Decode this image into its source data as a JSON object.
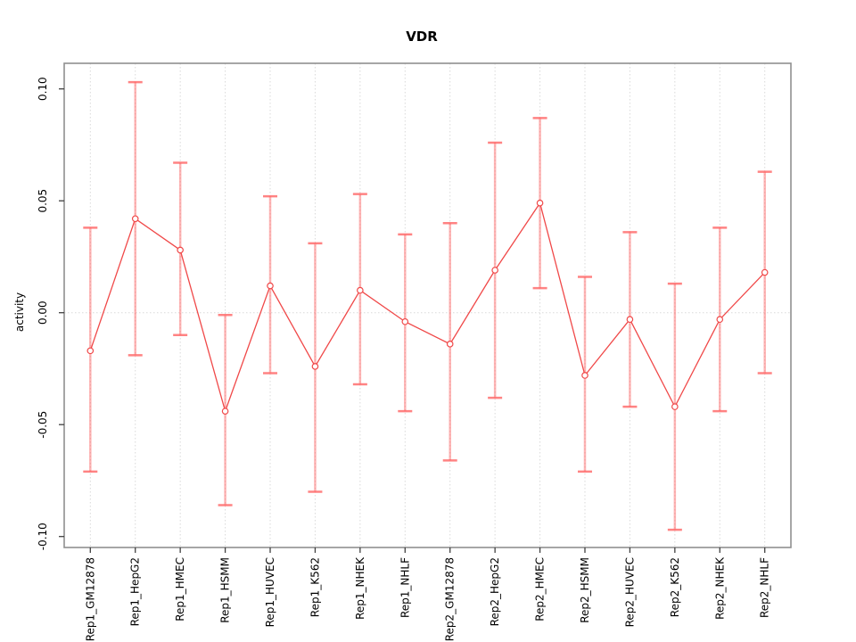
{
  "chart_data": {
    "type": "line",
    "title": "VDR",
    "xlabel": "",
    "ylabel": "activity",
    "legend": "none",
    "grid": {
      "vertical_dotted_at_categories": true,
      "horizontal_dotted_at_zero": true
    },
    "marker": "open-circle",
    "error_bars": true,
    "ylim": [
      -0.105,
      0.111
    ],
    "yticks": {
      "values": [
        -0.1,
        -0.05,
        0.0,
        0.05,
        0.1
      ],
      "labels": [
        "-0.10",
        "-0.05",
        "0.00",
        "0.05",
        "0.10"
      ]
    },
    "categories": [
      "Rep1_GM12878",
      "Rep1_HepG2",
      "Rep1_HMEC",
      "Rep1_HSMM",
      "Rep1_HUVEC",
      "Rep1_K562",
      "Rep1_NHEK",
      "Rep1_NHLF",
      "Rep2_GM12878",
      "Rep2_HepG2",
      "Rep2_HMEC",
      "Rep2_HSMM",
      "Rep2_HUVEC",
      "Rep2_K562",
      "Rep2_NHEK",
      "Rep2_NHLF"
    ],
    "series": [
      {
        "name": "activity",
        "values": [
          -0.017,
          0.042,
          0.028,
          -0.044,
          0.012,
          -0.024,
          0.01,
          -0.004,
          -0.014,
          0.019,
          0.049,
          -0.028,
          -0.003,
          -0.042,
          -0.003,
          0.018
        ],
        "upper": [
          0.038,
          0.103,
          0.067,
          -0.001,
          0.052,
          0.031,
          0.053,
          0.035,
          0.04,
          0.076,
          0.087,
          0.016,
          0.036,
          0.013,
          0.038,
          0.063
        ],
        "lower": [
          -0.071,
          -0.019,
          -0.01,
          -0.086,
          -0.027,
          -0.08,
          -0.032,
          -0.044,
          -0.066,
          -0.038,
          0.011,
          -0.071,
          -0.042,
          -0.097,
          -0.044,
          -0.027
        ]
      }
    ],
    "colors": {
      "line": "#f04848",
      "marker_stroke": "#f04848",
      "marker_fill": "#ffffff",
      "error_bar": "rgba(255,90,90,0.45)",
      "error_cap": "rgba(255,100,100,0.8)",
      "grid": "#d9d9d9",
      "box": "#8f8f8f",
      "tick": "#404040",
      "text": "#000000",
      "background": "#ffffff"
    }
  }
}
